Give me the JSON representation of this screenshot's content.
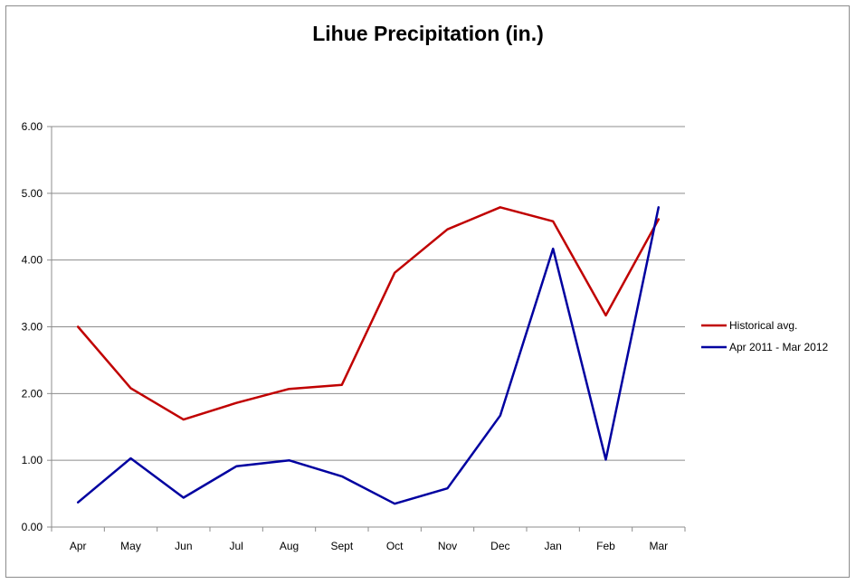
{
  "chart_data": {
    "type": "line",
    "title": "Lihue Precipitation (in.)",
    "xlabel": "",
    "ylabel": "",
    "categories": [
      "Apr",
      "May",
      "Jun",
      "Jul",
      "Aug",
      "Sept",
      "Oct",
      "Nov",
      "Dec",
      "Jan",
      "Feb",
      "Mar"
    ],
    "ylim": [
      0,
      6
    ],
    "yticks": [
      "0.00",
      "1.00",
      "2.00",
      "3.00",
      "4.00",
      "5.00",
      "6.00"
    ],
    "grid": true,
    "legend_position": "right",
    "series": [
      {
        "name": "Historical avg.",
        "color": "#c00000",
        "values": [
          3.0,
          2.08,
          1.61,
          1.86,
          2.07,
          2.13,
          3.81,
          4.46,
          4.79,
          4.58,
          3.17,
          4.61
        ]
      },
      {
        "name": "Apr 2011 - Mar 2012",
        "color": "#0000a0",
        "values": [
          0.37,
          1.03,
          0.44,
          0.91,
          1.0,
          0.76,
          0.35,
          0.58,
          1.67,
          4.17,
          1.01,
          4.79
        ]
      }
    ]
  }
}
